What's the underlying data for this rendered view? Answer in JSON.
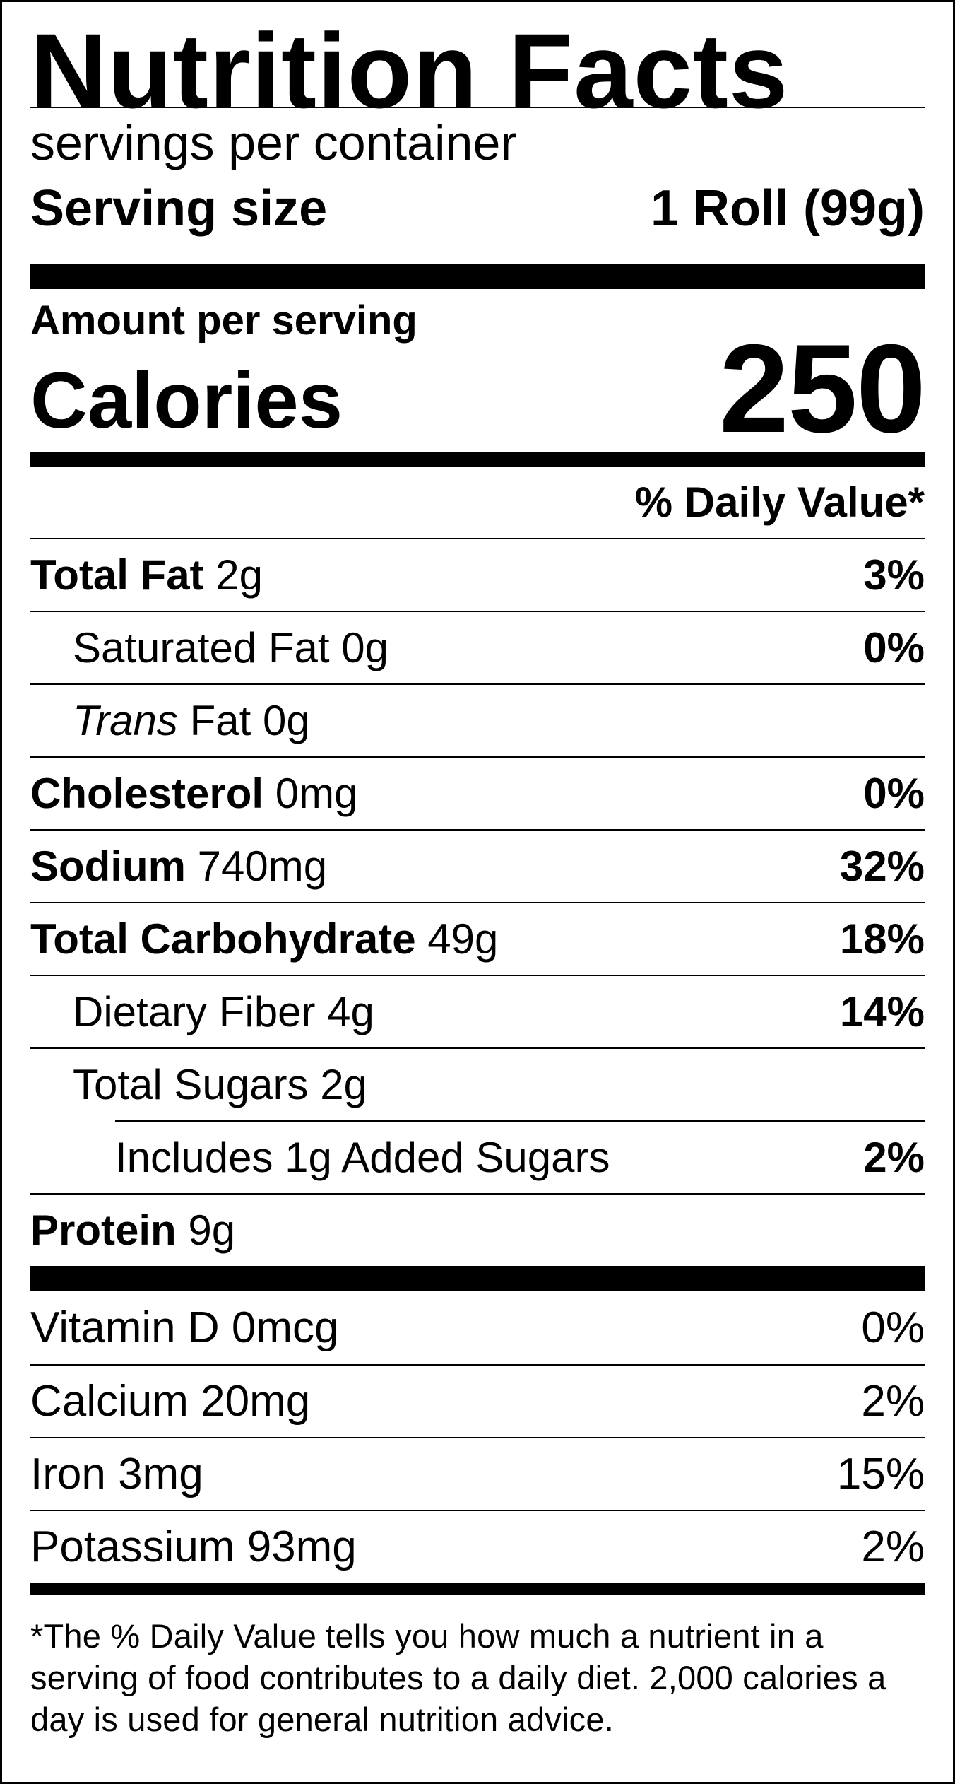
{
  "title": "Nutrition Facts",
  "servings_per_container": "servings per container",
  "serving_size": {
    "label": "Serving size",
    "value": "1 Roll (99g)"
  },
  "amount_per_serving": "Amount per serving",
  "calories": {
    "label": "Calories",
    "value": "250"
  },
  "daily_value_header": "% Daily Value*",
  "nutrients": [
    {
      "name": "Total Fat",
      "amount": "2g",
      "dv": "3%"
    },
    {
      "name": "Saturated Fat",
      "amount": "0g",
      "dv": "0%"
    },
    {
      "name_italic": "Trans",
      "name": "Fat",
      "amount": "0g",
      "dv": ""
    },
    {
      "name": "Cholesterol",
      "amount": "0mg",
      "dv": "0%"
    },
    {
      "name": "Sodium",
      "amount": "740mg",
      "dv": "32%"
    },
    {
      "name": "Total Carbohydrate",
      "amount": "49g",
      "dv": "18%"
    },
    {
      "name": "Dietary Fiber",
      "amount": "4g",
      "dv": "14%"
    },
    {
      "name": "Total Sugars",
      "amount": "2g",
      "dv": ""
    },
    {
      "name": "Includes 1g Added Sugars",
      "amount": "",
      "dv": "2%"
    },
    {
      "name": "Protein",
      "amount": "9g",
      "dv": ""
    }
  ],
  "vitamins": [
    {
      "name": "Vitamin D",
      "amount": "0mcg",
      "dv": "0%"
    },
    {
      "name": "Calcium",
      "amount": "20mg",
      "dv": "2%"
    },
    {
      "name": "Iron",
      "amount": "3mg",
      "dv": "15%"
    },
    {
      "name": "Potassium",
      "amount": "93mg",
      "dv": "2%"
    }
  ],
  "footnote": "*The % Daily Value tells you how much a nutrient in a serving of food contributes to a daily diet. 2,000 calories a day is used for general nutrition advice."
}
